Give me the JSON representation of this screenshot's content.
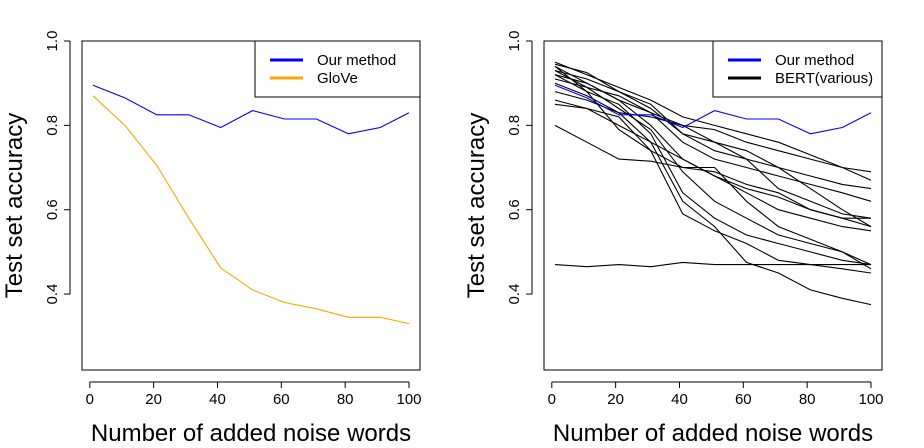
{
  "chart_data": [
    {
      "type": "line",
      "xlabel": "Number of added noise words",
      "ylabel": "Test set accuracy",
      "xlim": [
        1,
        100
      ],
      "ylim": [
        0.22,
        1.0
      ],
      "xticks": [
        0,
        20,
        40,
        60,
        80,
        100
      ],
      "yticks": [
        0.4,
        0.6,
        0.8,
        1.0
      ],
      "grid": false,
      "legend": "top-right",
      "series": [
        {
          "name": "Our method",
          "color": "#0000ff",
          "legend": true,
          "x": [
            1,
            11,
            21,
            31,
            41,
            51,
            61,
            71,
            81,
            91,
            100
          ],
          "y": [
            0.895,
            0.865,
            0.825,
            0.825,
            0.795,
            0.835,
            0.815,
            0.815,
            0.78,
            0.795,
            0.83
          ]
        },
        {
          "name": "GloVe",
          "color": "#ffa500",
          "legend": true,
          "x": [
            1,
            11,
            21,
            31,
            41,
            51,
            61,
            71,
            81,
            91,
            100
          ],
          "y": [
            0.87,
            0.8,
            0.705,
            0.58,
            0.462,
            0.41,
            0.38,
            0.365,
            0.345,
            0.345,
            0.33
          ]
        }
      ]
    },
    {
      "type": "line",
      "xlabel": "Number of added noise words",
      "ylabel": "Test set accuracy",
      "xlim": [
        1,
        100
      ],
      "ylim": [
        0.22,
        1.0
      ],
      "xticks": [
        0,
        20,
        40,
        60,
        80,
        100
      ],
      "yticks": [
        0.4,
        0.6,
        0.8,
        1.0
      ],
      "grid": false,
      "legend": "top-right",
      "series": [
        {
          "name": "Our method",
          "color": "#0000ff",
          "legend": true,
          "x": [
            1,
            11,
            21,
            31,
            41,
            51,
            61,
            71,
            81,
            91,
            100
          ],
          "y": [
            0.895,
            0.865,
            0.825,
            0.825,
            0.795,
            0.835,
            0.815,
            0.815,
            0.78,
            0.795,
            0.83
          ]
        },
        {
          "name": "BERT(various)",
          "color": "#000000",
          "legend": true,
          "x": [
            1,
            11,
            21,
            31,
            41,
            51,
            61,
            71,
            81,
            91,
            100
          ],
          "y": [
            0.95,
            0.92,
            0.89,
            0.86,
            0.82,
            0.8,
            0.78,
            0.76,
            0.73,
            0.7,
            0.69
          ]
        },
        {
          "color": "#000000",
          "x": [
            1,
            11,
            21,
            31,
            41,
            51,
            61,
            71,
            81,
            91,
            100
          ],
          "y": [
            0.94,
            0.9,
            0.86,
            0.8,
            0.72,
            0.68,
            0.65,
            0.63,
            0.6,
            0.58,
            0.56
          ]
        },
        {
          "color": "#000000",
          "x": [
            1,
            11,
            21,
            31,
            41,
            51,
            61,
            71,
            81,
            91,
            100
          ],
          "y": [
            0.93,
            0.91,
            0.88,
            0.84,
            0.78,
            0.74,
            0.72,
            0.7,
            0.68,
            0.66,
            0.65
          ]
        },
        {
          "color": "#000000",
          "x": [
            1,
            11,
            21,
            31,
            41,
            51,
            61,
            71,
            81,
            91,
            100
          ],
          "y": [
            0.92,
            0.88,
            0.85,
            0.78,
            0.64,
            0.58,
            0.54,
            0.52,
            0.5,
            0.48,
            0.47
          ]
        },
        {
          "color": "#000000",
          "x": [
            1,
            11,
            21,
            31,
            41,
            51,
            61,
            71,
            81,
            91,
            100
          ],
          "y": [
            0.9,
            0.87,
            0.83,
            0.76,
            0.62,
            0.56,
            0.475,
            0.45,
            0.41,
            0.39,
            0.375
          ]
        },
        {
          "color": "#000000",
          "x": [
            1,
            11,
            21,
            31,
            41,
            51,
            61,
            71,
            81,
            91,
            100
          ],
          "y": [
            0.88,
            0.86,
            0.83,
            0.82,
            0.8,
            0.79,
            0.76,
            0.74,
            0.72,
            0.7,
            0.67
          ]
        },
        {
          "color": "#000000",
          "x": [
            1,
            11,
            21,
            31,
            41,
            51,
            61,
            71,
            81,
            91,
            100
          ],
          "y": [
            0.86,
            0.84,
            0.8,
            0.76,
            0.72,
            0.68,
            0.64,
            0.6,
            0.58,
            0.56,
            0.55
          ]
        },
        {
          "color": "#000000",
          "x": [
            1,
            11,
            21,
            31,
            41,
            51,
            61,
            71,
            81,
            91,
            100
          ],
          "y": [
            0.85,
            0.84,
            0.82,
            0.74,
            0.59,
            0.55,
            0.52,
            0.48,
            0.47,
            0.46,
            0.45
          ]
        },
        {
          "color": "#000000",
          "x": [
            1,
            11,
            21,
            31,
            41,
            51,
            61,
            71,
            81,
            91,
            100
          ],
          "y": [
            0.8,
            0.76,
            0.72,
            0.715,
            0.7,
            0.69,
            0.66,
            0.64,
            0.6,
            0.58,
            0.58
          ]
        },
        {
          "color": "#000000",
          "x": [
            1,
            11,
            21,
            31,
            41,
            51,
            61,
            71,
            81,
            91,
            100
          ],
          "y": [
            0.91,
            0.89,
            0.87,
            0.83,
            0.76,
            0.72,
            0.7,
            0.68,
            0.66,
            0.64,
            0.62
          ]
        },
        {
          "color": "#000000",
          "x": [
            1,
            11,
            21,
            31,
            41,
            51,
            61,
            71,
            81,
            91,
            100
          ],
          "y": [
            0.93,
            0.89,
            0.84,
            0.79,
            0.69,
            0.62,
            0.58,
            0.54,
            0.52,
            0.5,
            0.47
          ]
        },
        {
          "color": "#000000",
          "x": [
            1,
            11,
            21,
            31,
            41,
            51,
            61,
            71,
            81,
            91,
            100
          ],
          "y": [
            0.92,
            0.9,
            0.86,
            0.83,
            0.8,
            0.76,
            0.74,
            0.7,
            0.65,
            0.6,
            0.56
          ]
        },
        {
          "color": "#000000",
          "x": [
            1,
            11,
            21,
            31,
            41,
            51,
            61,
            71,
            81,
            91,
            100
          ],
          "y": [
            0.47,
            0.465,
            0.47,
            0.465,
            0.475,
            0.47,
            0.47,
            0.47,
            0.47,
            0.47,
            0.47
          ]
        },
        {
          "color": "#000000",
          "x": [
            1,
            11,
            21,
            31,
            41,
            51,
            61,
            71,
            81,
            91,
            100
          ],
          "y": [
            0.94,
            0.88,
            0.79,
            0.74,
            0.7,
            0.7,
            0.62,
            0.56,
            0.53,
            0.5,
            0.46
          ]
        },
        {
          "color": "#000000",
          "x": [
            1,
            11,
            21,
            31,
            41,
            51,
            61,
            71,
            81,
            91,
            100
          ],
          "y": [
            0.945,
            0.925,
            0.88,
            0.85,
            0.78,
            0.76,
            0.72,
            0.65,
            0.62,
            0.59,
            0.58
          ]
        }
      ]
    }
  ]
}
